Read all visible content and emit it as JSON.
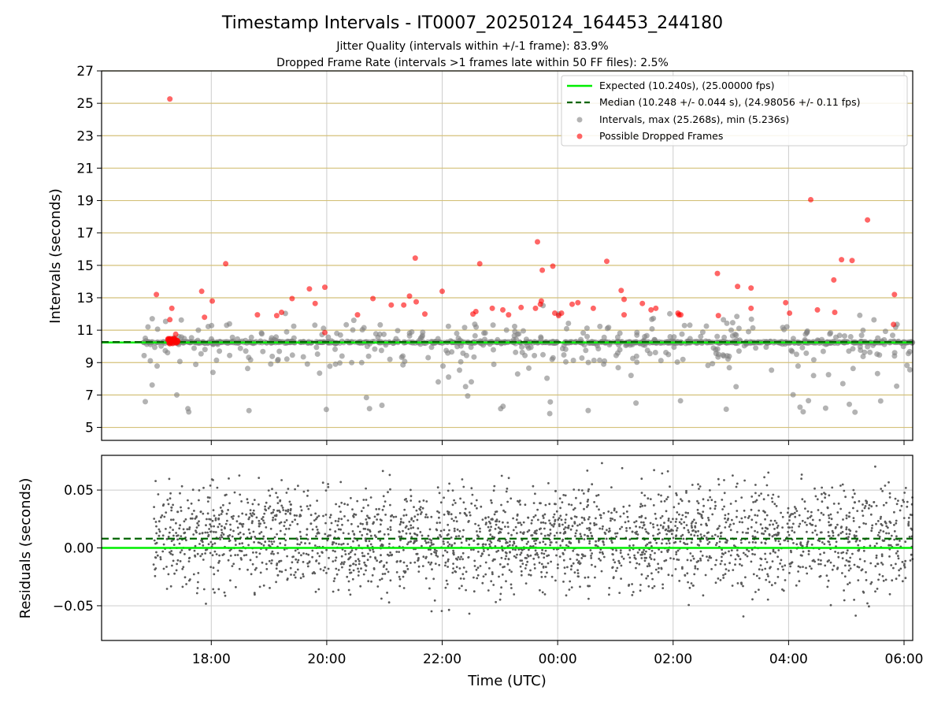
{
  "title": "Timestamp Intervals - IT0007_20250124_164453_244180",
  "subtitle_1": "Jitter Quality (intervals within +/-1 frame): 83.9%",
  "subtitle_2": "Dropped Frame Rate (intervals >1 frames late within 50 FF files): 2.5%",
  "colors": {
    "expected": "#00ee00",
    "median": "#006400",
    "intervals": "#808080",
    "dropped": "#ff0000",
    "hline": "#d4c17a",
    "grid": "#cccccc",
    "residuals": "#5a5a5a"
  },
  "chart_data": [
    {
      "type": "scatter",
      "panel": "top",
      "ylabel": "Intervals (seconds)",
      "ylim": [
        4.2,
        27
      ],
      "yticks": [
        "5",
        "7",
        "9",
        "11",
        "13",
        "15",
        "17",
        "19",
        "21",
        "23",
        "25",
        "27"
      ],
      "xlim_hours": [
        16.1,
        30.15
      ],
      "xtick_labels": [
        "18:00",
        "20:00",
        "22:00",
        "00:00",
        "02:00",
        "04:00",
        "06:00"
      ],
      "xtick_hours": [
        18,
        20,
        22,
        24,
        26,
        28,
        30
      ],
      "horizontal_lines_at": [
        5,
        7,
        9,
        11,
        13,
        15,
        17,
        19,
        21,
        23,
        25,
        27
      ],
      "grid": true,
      "legend_position": "top-right",
      "expected_interval": 10.24,
      "median_interval": 10.248,
      "legend": [
        "Expected (10.240s), (25.00000 fps)",
        "Median (10.248 +/- 0.044 s), (24.98056 +/- 0.11 fps)",
        "Intervals, max (25.268s), min (5.236s)",
        "Possible Dropped Frames"
      ],
      "dropped_frames": [
        {
          "t": "17:03",
          "v": 13.2
        },
        {
          "t": "17:17",
          "v": 25.27
        },
        {
          "t": "17:17",
          "v": 11.65
        },
        {
          "t": "17:19",
          "v": 12.35
        },
        {
          "t": "17:23",
          "v": 10.75
        },
        {
          "t": "17:50",
          "v": 13.4
        },
        {
          "t": "17:53",
          "v": 11.8
        },
        {
          "t": "18:01",
          "v": 12.8
        },
        {
          "t": "18:15",
          "v": 15.1
        },
        {
          "t": "18:48",
          "v": 11.95
        },
        {
          "t": "19:08",
          "v": 11.9
        },
        {
          "t": "19:13",
          "v": 12.1
        },
        {
          "t": "19:24",
          "v": 12.95
        },
        {
          "t": "19:42",
          "v": 13.55
        },
        {
          "t": "19:48",
          "v": 12.65
        },
        {
          "t": "19:58",
          "v": 13.65
        },
        {
          "t": "19:58",
          "v": 10.85
        },
        {
          "t": "20:32",
          "v": 11.95
        },
        {
          "t": "20:48",
          "v": 12.95
        },
        {
          "t": "21:07",
          "v": 12.55
        },
        {
          "t": "21:20",
          "v": 12.55
        },
        {
          "t": "21:26",
          "v": 13.1
        },
        {
          "t": "21:32",
          "v": 15.45
        },
        {
          "t": "21:33",
          "v": 12.75
        },
        {
          "t": "21:42",
          "v": 12.0
        },
        {
          "t": "22:00",
          "v": 13.4
        },
        {
          "t": "22:32",
          "v": 12.0
        },
        {
          "t": "22:35",
          "v": 12.15
        },
        {
          "t": "22:39",
          "v": 15.1
        },
        {
          "t": "22:52",
          "v": 12.35
        },
        {
          "t": "23:03",
          "v": 12.25
        },
        {
          "t": "23:09",
          "v": 11.95
        },
        {
          "t": "23:22",
          "v": 12.4
        },
        {
          "t": "23:37",
          "v": 12.35
        },
        {
          "t": "23:39",
          "v": 16.45
        },
        {
          "t": "23:42",
          "v": 12.6
        },
        {
          "t": "23:43",
          "v": 12.8
        },
        {
          "t": "23:44",
          "v": 14.7
        },
        {
          "t": "23:55",
          "v": 14.95
        },
        {
          "t": "23:57",
          "v": 12.05
        },
        {
          "t": "00:01",
          "v": 11.9
        },
        {
          "t": "00:04",
          "v": 12.05
        },
        {
          "t": "00:15",
          "v": 12.6
        },
        {
          "t": "00:21",
          "v": 12.7
        },
        {
          "t": "00:37",
          "v": 12.35
        },
        {
          "t": "00:51",
          "v": 15.25
        },
        {
          "t": "01:06",
          "v": 13.45
        },
        {
          "t": "01:09",
          "v": 12.9
        },
        {
          "t": "01:09",
          "v": 11.95
        },
        {
          "t": "01:28",
          "v": 12.65
        },
        {
          "t": "01:37",
          "v": 12.25
        },
        {
          "t": "01:42",
          "v": 12.35
        },
        {
          "t": "02:05",
          "v": 12.05
        },
        {
          "t": "02:06",
          "v": 11.95
        },
        {
          "t": "02:08",
          "v": 11.95
        },
        {
          "t": "02:46",
          "v": 14.5
        },
        {
          "t": "02:47",
          "v": 11.9
        },
        {
          "t": "03:07",
          "v": 13.7
        },
        {
          "t": "03:21",
          "v": 13.6
        },
        {
          "t": "03:21",
          "v": 12.35
        },
        {
          "t": "03:57",
          "v": 12.7
        },
        {
          "t": "04:01",
          "v": 12.05
        },
        {
          "t": "04:23",
          "v": 19.05
        },
        {
          "t": "04:30",
          "v": 12.25
        },
        {
          "t": "04:47",
          "v": 14.1
        },
        {
          "t": "04:48",
          "v": 12.1
        },
        {
          "t": "04:55",
          "v": 15.35
        },
        {
          "t": "05:06",
          "v": 15.3
        },
        {
          "t": "05:22",
          "v": 17.8
        },
        {
          "t": "05:50",
          "v": 13.2
        },
        {
          "t": "05:49",
          "v": 11.35
        }
      ]
    },
    {
      "type": "scatter",
      "panel": "bottom",
      "xlabel": "Time (UTC)",
      "ylabel": "Residuals (seconds)",
      "ylim": [
        -0.08,
        0.08
      ],
      "yticks": [
        "0.05",
        "0.00",
        "−0.05"
      ],
      "xtick_labels": [
        "18:00",
        "20:00",
        "22:00",
        "00:00",
        "02:00",
        "04:00",
        "06:00"
      ],
      "grid": true,
      "expected_residual": 0.0,
      "median_residual": 0.008
    }
  ]
}
